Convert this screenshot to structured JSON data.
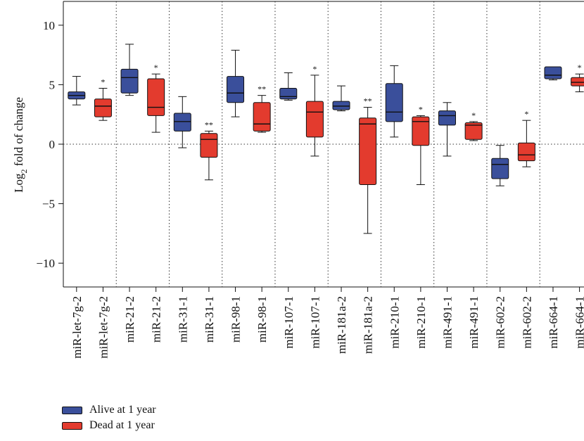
{
  "chart_data": {
    "type": "boxplot",
    "ylabel_main": "Log",
    "ylabel_sub": "2",
    "ylabel_rest": " fold of change",
    "ylim": [
      -12,
      12
    ],
    "yticks": [
      10,
      5,
      0,
      -5,
      -10
    ],
    "ytick_labels": [
      "10",
      "5",
      "0",
      "−5",
      "−10"
    ],
    "reference_line": 0,
    "colors": {
      "alive": "#3a4f9b",
      "dead": "#e33b2e"
    },
    "series_names": [
      "Alive at 1 year",
      "Dead at 1 year"
    ],
    "categories": [
      "miR-let-7g-2",
      "miR-let-7g-2",
      "miR-21-2",
      "miR-21-2",
      "miR-31-1",
      "miR-31-1",
      "miR-98-1",
      "miR-98-1",
      "miR-107-1",
      "miR-107-1",
      "miR-181a-2",
      "miR-181a-2",
      "miR-210-1",
      "miR-210-1",
      "miR-491-1",
      "miR-491-1",
      "miR-602-2",
      "miR-602-2",
      "miR-664-1",
      "miR-664-1"
    ],
    "boxes": [
      {
        "group": "alive",
        "min": 3.3,
        "q1": 3.8,
        "median": 4.1,
        "q3": 4.4,
        "max": 5.7,
        "sig": ""
      },
      {
        "group": "dead",
        "min": 2.0,
        "q1": 2.3,
        "median": 3.2,
        "q3": 3.8,
        "max": 4.7,
        "sig": "*"
      },
      {
        "group": "alive",
        "min": 4.1,
        "q1": 4.3,
        "median": 5.6,
        "q3": 6.3,
        "max": 8.4,
        "sig": ""
      },
      {
        "group": "dead",
        "min": 1.0,
        "q1": 2.4,
        "median": 3.1,
        "q3": 5.5,
        "max": 5.9,
        "sig": "*"
      },
      {
        "group": "alive",
        "min": -0.3,
        "q1": 1.1,
        "median": 1.9,
        "q3": 2.6,
        "max": 4.0,
        "sig": ""
      },
      {
        "group": "dead",
        "min": -3.0,
        "q1": -1.1,
        "median": 0.4,
        "q3": 0.9,
        "max": 1.1,
        "sig": "**"
      },
      {
        "group": "alive",
        "min": 2.3,
        "q1": 3.5,
        "median": 4.3,
        "q3": 5.7,
        "max": 7.9,
        "sig": ""
      },
      {
        "group": "dead",
        "min": 1.0,
        "q1": 1.1,
        "median": 1.7,
        "q3": 3.5,
        "max": 4.1,
        "sig": "**"
      },
      {
        "group": "alive",
        "min": 3.7,
        "q1": 3.8,
        "median": 4.0,
        "q3": 4.7,
        "max": 6.0,
        "sig": ""
      },
      {
        "group": "dead",
        "min": -1.0,
        "q1": 0.6,
        "median": 2.7,
        "q3": 3.6,
        "max": 5.8,
        "sig": "*"
      },
      {
        "group": "alive",
        "min": 2.8,
        "q1": 2.9,
        "median": 3.2,
        "q3": 3.6,
        "max": 4.9,
        "sig": ""
      },
      {
        "group": "dead",
        "min": -7.5,
        "q1": -3.4,
        "median": 1.7,
        "q3": 2.2,
        "max": 3.1,
        "sig": "**"
      },
      {
        "group": "alive",
        "min": 0.6,
        "q1": 1.9,
        "median": 2.7,
        "q3": 5.1,
        "max": 6.6,
        "sig": ""
      },
      {
        "group": "dead",
        "min": -3.4,
        "q1": -0.1,
        "median": 1.9,
        "q3": 2.3,
        "max": 2.4,
        "sig": "*"
      },
      {
        "group": "alive",
        "min": -1.0,
        "q1": 1.6,
        "median": 2.4,
        "q3": 2.8,
        "max": 3.5,
        "sig": ""
      },
      {
        "group": "dead",
        "min": 0.3,
        "q1": 0.4,
        "median": 1.6,
        "q3": 1.8,
        "max": 1.9,
        "sig": "*"
      },
      {
        "group": "alive",
        "min": -3.5,
        "q1": -2.9,
        "median": -1.7,
        "q3": -1.2,
        "max": -0.1,
        "sig": ""
      },
      {
        "group": "dead",
        "min": -1.9,
        "q1": -1.4,
        "median": -0.9,
        "q3": 0.1,
        "max": 2.0,
        "sig": "*"
      },
      {
        "group": "alive",
        "min": 5.4,
        "q1": 5.5,
        "median": 5.8,
        "q3": 6.5,
        "max": 6.5,
        "sig": ""
      },
      {
        "group": "dead",
        "min": 4.4,
        "q1": 4.9,
        "median": 5.2,
        "q3": 5.6,
        "max": 5.9,
        "sig": "*"
      }
    ]
  },
  "legend": {
    "items": [
      {
        "label": "Alive at 1 year",
        "color": "#3a4f9b"
      },
      {
        "label": "Dead at 1 year",
        "color": "#e33b2e"
      }
    ]
  }
}
